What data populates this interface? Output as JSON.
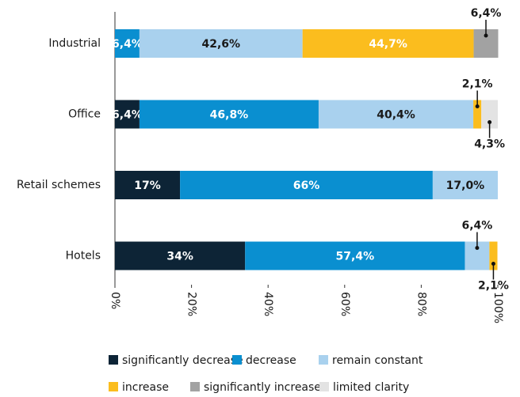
{
  "chart_data": {
    "type": "stacked-barh",
    "categories": [
      "Industrial",
      "Office",
      "Retail schemes",
      "Hotels"
    ],
    "series": [
      {
        "name": "significantly decrease",
        "color": "#0d2436",
        "values": [
          0,
          6.4,
          17,
          34
        ],
        "value_labels": [
          null,
          "6,4%",
          "17%",
          "34%"
        ]
      },
      {
        "name": "decrease",
        "color": "#0a8fd0",
        "values": [
          6.4,
          46.8,
          66,
          57.4
        ],
        "value_labels": [
          "6,4%",
          "46,8%",
          "66%",
          "57,4%"
        ]
      },
      {
        "name": "remain constant",
        "color": "#a9d1ee",
        "values": [
          42.6,
          40.4,
          17.0,
          6.4
        ],
        "value_labels": [
          "42,6%",
          "40,4%",
          "17,0%",
          "6,4%"
        ]
      },
      {
        "name": "increase",
        "color": "#fbbd1e",
        "values": [
          44.7,
          2.1,
          0,
          2.1
        ],
        "value_labels": [
          "44,7%",
          "2,1%",
          null,
          "2,1%"
        ]
      },
      {
        "name": "significantly increase",
        "color": "#a2a2a2",
        "values": [
          6.4,
          0,
          0,
          0
        ],
        "value_labels": [
          "6,4%",
          null,
          null,
          null
        ]
      },
      {
        "name": "limited clarity",
        "color": "#e3e3e3",
        "values": [
          0,
          4.3,
          0,
          0
        ],
        "value_labels": [
          null,
          "4,3%",
          null,
          null
        ]
      }
    ],
    "xlim": [
      0,
      100
    ],
    "xticks": [
      {
        "value": 0,
        "label": "0%"
      },
      {
        "value": 20,
        "label": "20%"
      },
      {
        "value": 40,
        "label": "40%"
      },
      {
        "value": 60,
        "label": "60%"
      },
      {
        "value": 80,
        "label": "80%"
      },
      {
        "value": 100,
        "label": "100%"
      }
    ],
    "grid": false
  }
}
